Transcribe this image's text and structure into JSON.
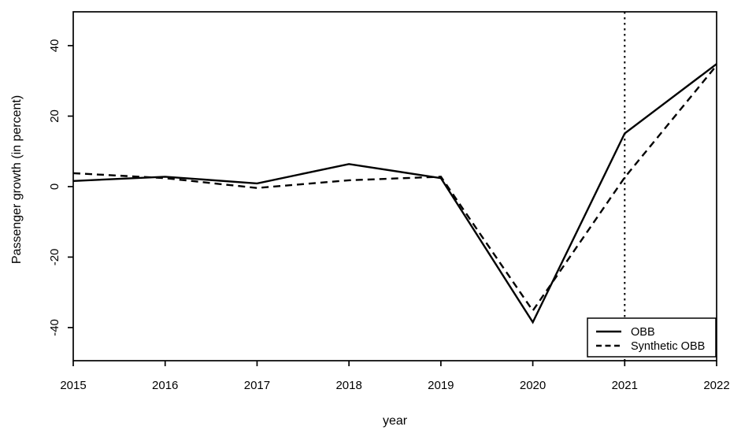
{
  "chart_data": {
    "type": "line",
    "x": [
      2015,
      2016,
      2017,
      2018,
      2019,
      2020,
      2021,
      2022
    ],
    "series": [
      {
        "name": "OBB",
        "style": "solid",
        "values": [
          1.6,
          2.8,
          0.9,
          6.4,
          2.4,
          -38.5,
          15.1,
          34.8
        ]
      },
      {
        "name": "Synthetic OBB",
        "style": "dashed",
        "values": [
          3.8,
          2.4,
          -0.4,
          1.8,
          2.8,
          -35.2,
          2.6,
          34.4
        ]
      }
    ],
    "title": "",
    "xlabel": "year",
    "ylabel": "Passenger growth (in percent)",
    "xticks": [
      2015,
      2016,
      2017,
      2018,
      2019,
      2020,
      2021,
      2022
    ],
    "yticks": [
      -40,
      -20,
      0,
      20,
      40
    ],
    "xlim": [
      2015,
      2022
    ],
    "ylim": [
      -49.4,
      49.6
    ],
    "grid": false,
    "vline": {
      "x": 2021,
      "style": "dotted"
    },
    "legend": {
      "position": "bottom-right",
      "entries": [
        {
          "label": "OBB",
          "style": "solid"
        },
        {
          "label": "Synthetic OBB",
          "style": "dashed"
        }
      ]
    },
    "colors": {
      "line": "#000000",
      "background": "#ffffff"
    }
  }
}
